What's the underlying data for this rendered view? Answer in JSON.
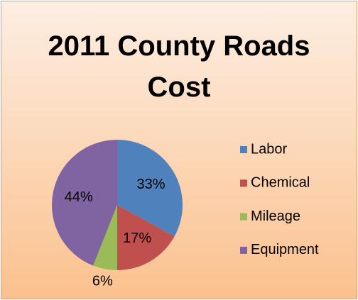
{
  "chart_data": {
    "type": "pie",
    "title": "2011 County Roads Cost",
    "categories": [
      "Labor",
      "Chemical",
      "Mileage",
      "Equipment"
    ],
    "values": [
      33,
      17,
      6,
      44
    ],
    "value_labels": [
      "33%",
      "17%",
      "6%",
      "44%"
    ],
    "colors": [
      "#4f81bd",
      "#c0504d",
      "#9bbb59",
      "#8064a2"
    ],
    "legend": "right"
  }
}
